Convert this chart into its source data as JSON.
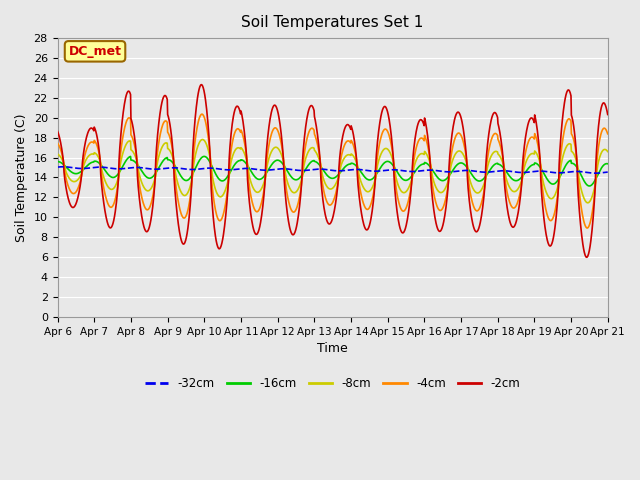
{
  "title": "Soil Temperatures Set 1",
  "xlabel": "Time",
  "ylabel": "Soil Temperature (C)",
  "annotation": "DC_met",
  "ylim": [
    0,
    28
  ],
  "yticks": [
    0,
    2,
    4,
    6,
    8,
    10,
    12,
    14,
    16,
    18,
    20,
    22,
    24,
    26,
    28
  ],
  "xtick_labels": [
    "Apr 6",
    "Apr 7",
    "Apr 8",
    "Apr 9",
    "Apr 10",
    "Apr 11",
    "Apr 12",
    "Apr 13",
    "Apr 14",
    "Apr 15",
    "Apr 16",
    "Apr 17",
    "Apr 18",
    "Apr 19",
    "Apr 20",
    "Apr 21"
  ],
  "series": {
    "-32cm": {
      "color": "#0000ee",
      "linewidth": 1.2,
      "linestyle": "--"
    },
    "-16cm": {
      "color": "#00cc00",
      "linewidth": 1.2,
      "linestyle": "-"
    },
    "-8cm": {
      "color": "#cccc00",
      "linewidth": 1.2,
      "linestyle": "-"
    },
    "-4cm": {
      "color": "#ff8800",
      "linewidth": 1.2,
      "linestyle": "-"
    },
    "-2cm": {
      "color": "#cc0000",
      "linewidth": 1.2,
      "linestyle": "-"
    }
  },
  "background_color": "#e8e8e8",
  "plot_bg_color": "#e8e8e8",
  "grid_color": "#ffffff",
  "annotation_bg": "#ffff99",
  "annotation_border": "#996600",
  "annotation_text_color": "#cc0000",
  "figsize": [
    6.4,
    4.8
  ],
  "dpi": 100
}
